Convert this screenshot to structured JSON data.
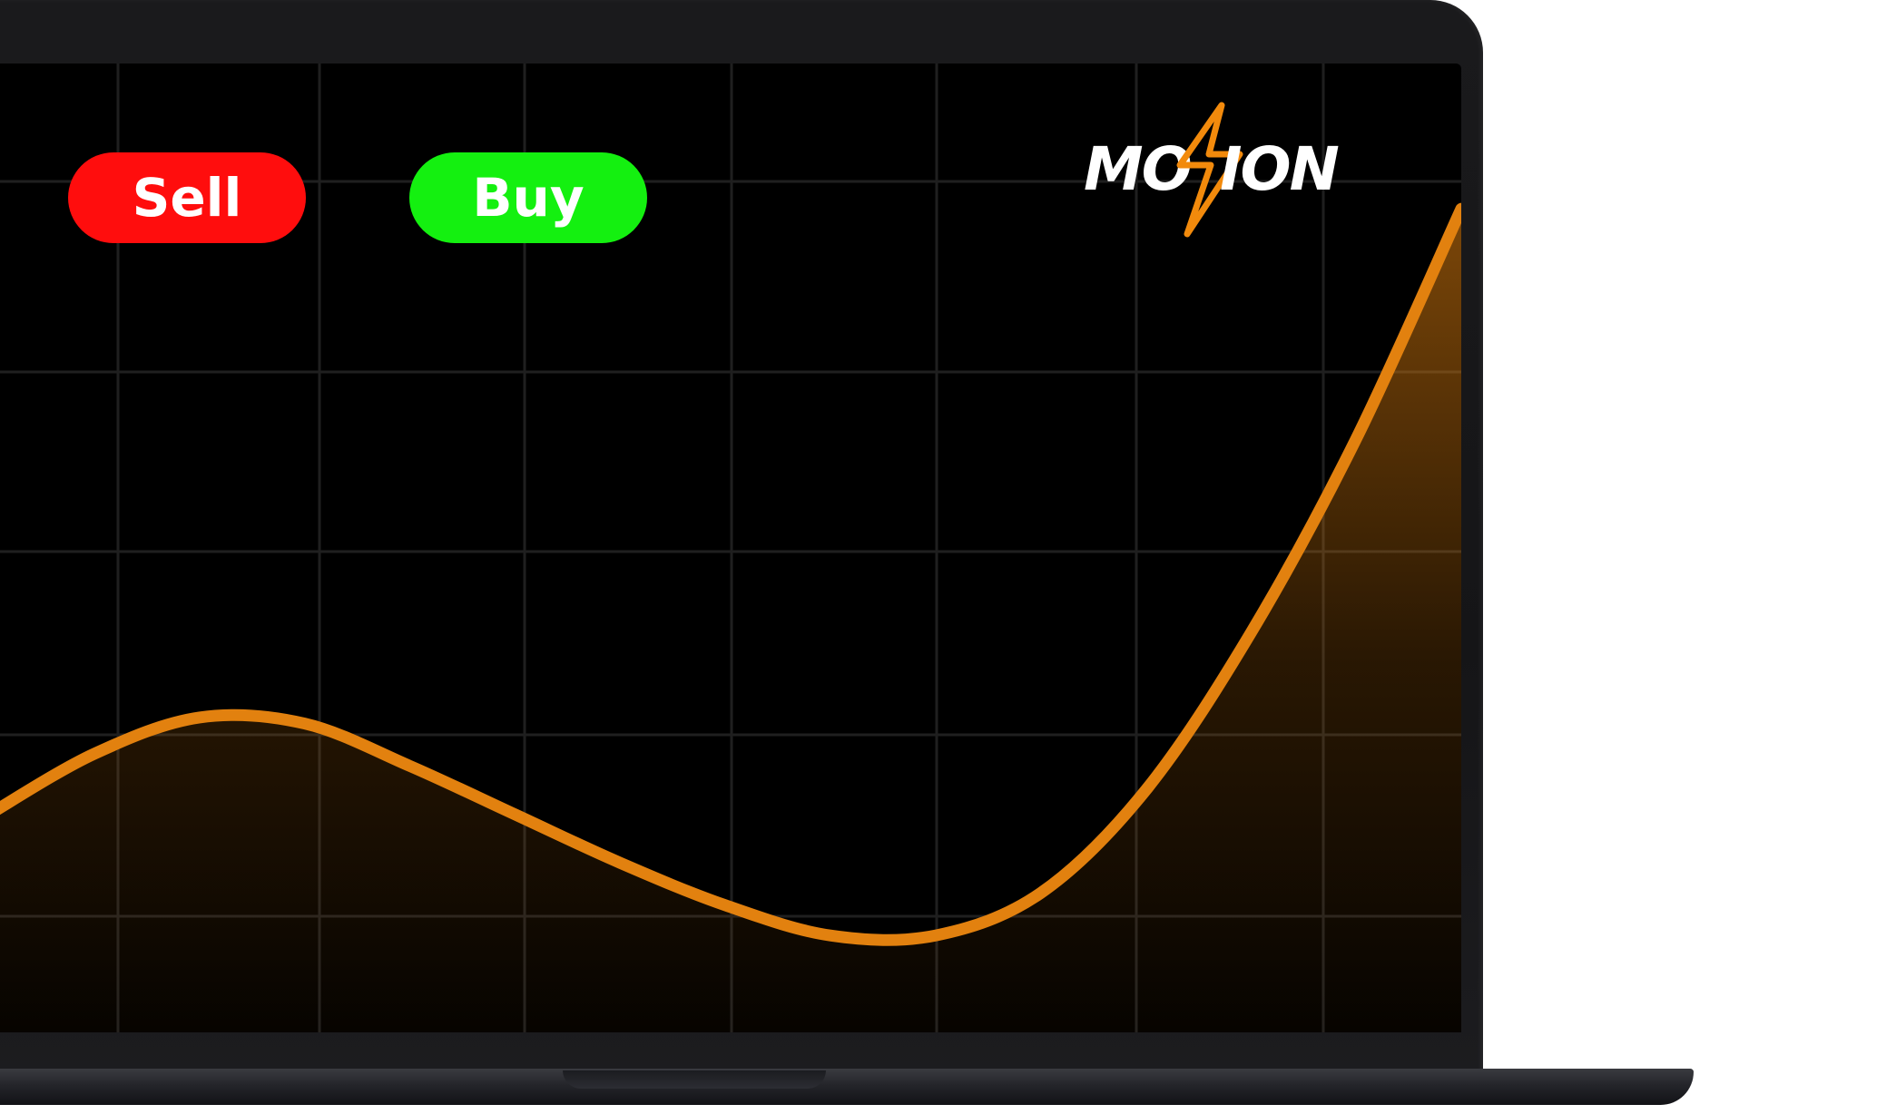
{
  "buttons": {
    "sell_label": "Sell",
    "buy_label": "Buy"
  },
  "logo": {
    "text_left": "MO",
    "text_right": "ION",
    "accent_color": "#f28a0c"
  },
  "colors": {
    "sell": "#ff0d0d",
    "buy": "#14f010",
    "line": "#e2810f",
    "screen_bg": "#000000",
    "grid": "#1f1f1f"
  },
  "chart_data": {
    "type": "area",
    "grid": true,
    "x": [
      0,
      1,
      2,
      3,
      4,
      5,
      6,
      7,
      8,
      9,
      10,
      11,
      12,
      13,
      14
    ],
    "values": [
      3.6,
      4.6,
      5.2,
      5.1,
      4.4,
      3.6,
      2.8,
      2.1,
      1.6,
      1.6,
      2.3,
      4.0,
      6.6,
      9.8,
      13.6
    ],
    "ylim": [
      0,
      16
    ]
  }
}
